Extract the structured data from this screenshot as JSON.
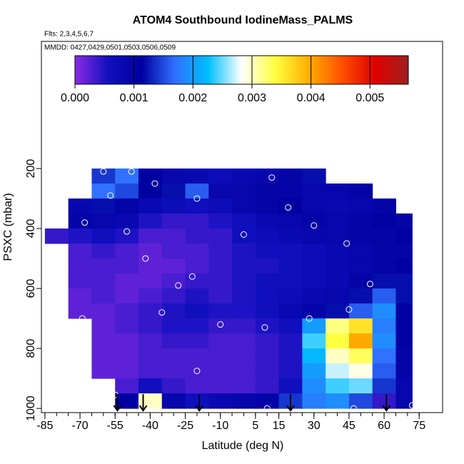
{
  "chart_data": {
    "type": "heatmap",
    "title": "ATOM4 Southbound IodineMass_PALMS",
    "subtitle": "Flts: 2,3,4,5,6,7",
    "annotation": "MMDD: 0427,0429,0501,0503,0506,0509",
    "x_label": "Latitude (deg N)",
    "y_label": "PSXC (mbar)",
    "xlim": [
      -86.5,
      85
    ],
    "ylim": [
      1014,
      -224
    ],
    "xticks": [
      -85,
      -70,
      -55,
      -40,
      -25,
      -10,
      5,
      15,
      30,
      45,
      60,
      75
    ],
    "xminorticks": [
      -85,
      -80,
      -75,
      -70,
      -65,
      -60,
      -55,
      -50,
      -45,
      -40,
      -35,
      -30,
      -25,
      -20,
      -15,
      -10,
      -5,
      0,
      5,
      10,
      15,
      20,
      25,
      30,
      35,
      40,
      45,
      50,
      55,
      60,
      65,
      70,
      75
    ],
    "yticks": [
      200,
      400,
      600,
      800,
      1000
    ],
    "colorscale": [
      "#8a2be2",
      "#1010c0",
      "#0000a0",
      "#3070ff",
      "#00bfff",
      "#ffffff",
      "#ffff40",
      "#ffb000",
      "#ff5000",
      "#e00000",
      "#a02020"
    ],
    "colorbar": {
      "lim": [
        0,
        0.00565
      ],
      "ticks": [
        {
          "value": 0,
          "label": "0.000"
        },
        {
          "value": 0.001,
          "label": "0.001"
        },
        {
          "value": 0.002,
          "label": "0.002"
        },
        {
          "value": 0.003,
          "label": "0.003"
        },
        {
          "value": 0.004,
          "label": "0.004"
        },
        {
          "value": 0.005,
          "label": "0.005"
        }
      ]
    },
    "lat_edges": [
      -85,
      -75,
      -65,
      -55,
      -45,
      -35,
      -25,
      -15,
      -5,
      5,
      15,
      25,
      35,
      45,
      55,
      65,
      72
    ],
    "pressure_edges": [
      200,
      250,
      300,
      350,
      400,
      450,
      500,
      550,
      600,
      650,
      700,
      750,
      800,
      850,
      900,
      950,
      1000
    ],
    "values": [
      [
        null,
        null,
        0.0014,
        0.0017,
        0.0011,
        0.0009,
        0.0008,
        0.0007,
        0.0008,
        0.0009,
        0.001,
        0.0012,
        null,
        null,
        null,
        null
      ],
      [
        null,
        null,
        0.0017,
        0.0015,
        0.0011,
        0.0012,
        0.0016,
        0.0009,
        0.0009,
        0.001,
        0.001,
        0.0009,
        0.0009,
        0.001,
        null,
        null
      ],
      [
        null,
        0.0009,
        0.0012,
        0.001,
        0.0008,
        0.0007,
        0.0006,
        0.0007,
        0.0009,
        0.001,
        0.0011,
        0.0009,
        0.0008,
        0.0009,
        0.001,
        null
      ],
      [
        null,
        0.001,
        0.0009,
        0.0008,
        0.0005,
        0.0004,
        0.0004,
        0.0005,
        0.0006,
        0.0008,
        0.0009,
        0.001,
        0.0009,
        0.001,
        0.0011,
        0.001
      ],
      [
        0.0004,
        0.0005,
        0.0006,
        0.0005,
        0.0003,
        0.0003,
        0.0004,
        0.0004,
        0.0006,
        0.0007,
        0.0008,
        0.0009,
        0.0009,
        0.001,
        0.001,
        0.0011
      ],
      [
        null,
        0.0003,
        0.0004,
        0.0003,
        0.0002,
        0.0003,
        0.0003,
        0.0004,
        0.0005,
        0.0006,
        0.0006,
        0.0007,
        0.0008,
        0.0009,
        0.001,
        0.001
      ],
      [
        null,
        0.0003,
        0.0003,
        0.0003,
        0.0002,
        0.0002,
        0.0003,
        0.0004,
        0.0005,
        0.0005,
        0.0006,
        0.0007,
        0.0008,
        0.0009,
        0.001,
        0.0011
      ],
      [
        null,
        0.0003,
        0.0003,
        0.0002,
        0.0002,
        0.0003,
        0.0004,
        0.0004,
        0.0005,
        0.0006,
        0.0006,
        0.0007,
        0.0008,
        0.001,
        0.0012,
        0.0012
      ],
      [
        null,
        0.0002,
        0.0003,
        0.0002,
        0.0003,
        0.0004,
        0.0005,
        0.0004,
        0.0005,
        0.0006,
        0.0007,
        0.0008,
        0.0009,
        0.0012,
        0.0016,
        0.0012
      ],
      [
        null,
        0.0002,
        0.0002,
        0.0003,
        0.0004,
        0.0005,
        0.0006,
        0.0005,
        0.0005,
        0.0006,
        0.0008,
        0.001,
        0.0012,
        0.0016,
        0.0019,
        0.0011
      ],
      [
        null,
        null,
        0.0002,
        0.0003,
        0.0004,
        0.0005,
        0.0005,
        0.0004,
        0.0004,
        0.0005,
        0.0006,
        0.002,
        0.0032,
        0.0036,
        0.0018,
        0.0011
      ],
      [
        null,
        null,
        0.0002,
        0.0002,
        0.0003,
        0.0004,
        0.0004,
        0.0003,
        0.0003,
        0.0004,
        0.0005,
        0.0024,
        0.0034,
        0.004,
        0.0019,
        0.0011
      ],
      [
        null,
        null,
        0.0002,
        0.0002,
        0.0003,
        0.0003,
        0.0003,
        0.0003,
        0.0003,
        0.0004,
        0.0005,
        0.0022,
        0.003,
        0.0033,
        0.0017,
        0.001
      ],
      [
        null,
        null,
        0.0002,
        0.0002,
        0.0003,
        0.0003,
        0.0003,
        0.0003,
        0.0003,
        0.0004,
        0.0005,
        0.002,
        0.0027,
        0.0029,
        0.0016,
        0.001
      ],
      [
        null,
        null,
        null,
        0.0003,
        0.0006,
        0.0004,
        0.0003,
        0.0003,
        0.0003,
        0.0004,
        0.0006,
        0.0019,
        0.0024,
        0.0025,
        0.0014,
        0.0009
      ],
      [
        null,
        null,
        null,
        0.0011,
        0.003,
        0.0009,
        0.0006,
        0.0008,
        0.0009,
        0.001,
        0.0014,
        0.0018,
        0.0019,
        0.0015,
        0.0004,
        0.0009
      ]
    ],
    "samples": {
      "x": [
        -60,
        -48,
        -38,
        -57,
        -20,
        12,
        19,
        30,
        -68,
        -50,
        0,
        44,
        -80,
        -42,
        -22,
        -28,
        54,
        -35,
        -69,
        28,
        45,
        -10,
        9,
        -20,
        -55,
        -40,
        10,
        47,
        72
      ],
      "y": [
        210,
        210,
        250,
        290,
        300,
        230,
        330,
        390,
        380,
        410,
        420,
        450,
        540,
        500,
        560,
        590,
        585,
        680,
        700,
        700,
        670,
        720,
        730,
        875,
        955,
        1000,
        1000,
        1000,
        990
      ]
    },
    "arrows": [
      -54,
      -43,
      -19,
      20,
      61
    ]
  }
}
